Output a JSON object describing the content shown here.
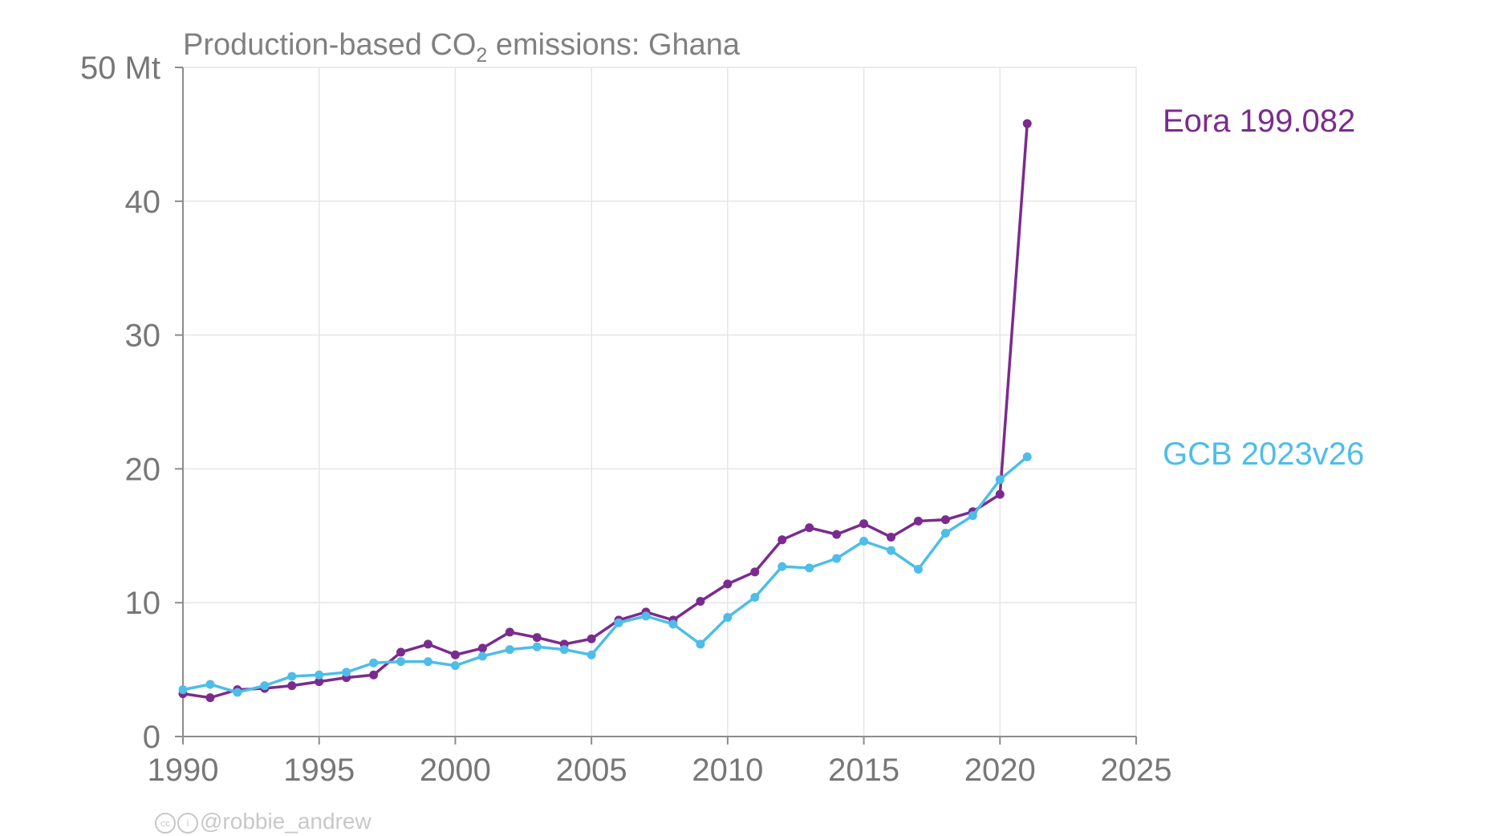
{
  "chart_data": {
    "type": "line",
    "title_main": "Production-based CO",
    "title_sub": "2",
    "title_tail": " emissions: Ghana",
    "y_unit_tick": "50 Mt",
    "xlim": [
      1990,
      2025
    ],
    "ylim": [
      0,
      50
    ],
    "x_ticks": [
      1990,
      1995,
      2000,
      2005,
      2010,
      2015,
      2020,
      2025
    ],
    "y_ticks": [
      0,
      10,
      20,
      30,
      40,
      50
    ],
    "grid": true,
    "x": [
      1990,
      1991,
      1992,
      1993,
      1994,
      1995,
      1996,
      1997,
      1998,
      1999,
      2000,
      2001,
      2002,
      2003,
      2004,
      2005,
      2006,
      2007,
      2008,
      2009,
      2010,
      2011,
      2012,
      2013,
      2014,
      2015,
      2016,
      2017,
      2018,
      2019,
      2020,
      2021
    ],
    "series": [
      {
        "name": "Eora 199.082",
        "color": "#7b2b8e",
        "values": [
          3.2,
          2.9,
          3.5,
          3.6,
          3.8,
          4.1,
          4.4,
          4.6,
          6.3,
          6.9,
          6.1,
          6.6,
          7.8,
          7.4,
          6.9,
          7.3,
          8.7,
          9.3,
          8.7,
          10.1,
          11.4,
          12.3,
          14.7,
          15.6,
          15.1,
          15.9,
          14.9,
          16.1,
          16.2,
          16.8,
          18.1,
          45.8
        ]
      },
      {
        "name": "GCB 2023v26",
        "color": "#4ebde8",
        "values": [
          3.5,
          3.9,
          3.3,
          3.8,
          4.5,
          4.6,
          4.8,
          5.5,
          5.6,
          5.6,
          5.3,
          6.0,
          6.5,
          6.7,
          6.5,
          6.1,
          8.5,
          9.0,
          8.4,
          6.9,
          8.9,
          10.4,
          12.7,
          12.6,
          13.3,
          14.6,
          13.9,
          12.5,
          15.2,
          16.5,
          19.2,
          20.9
        ]
      }
    ]
  },
  "credit": "@robbie_andrew",
  "credit_icons": [
    "cc-icon",
    "attribution-icon"
  ]
}
